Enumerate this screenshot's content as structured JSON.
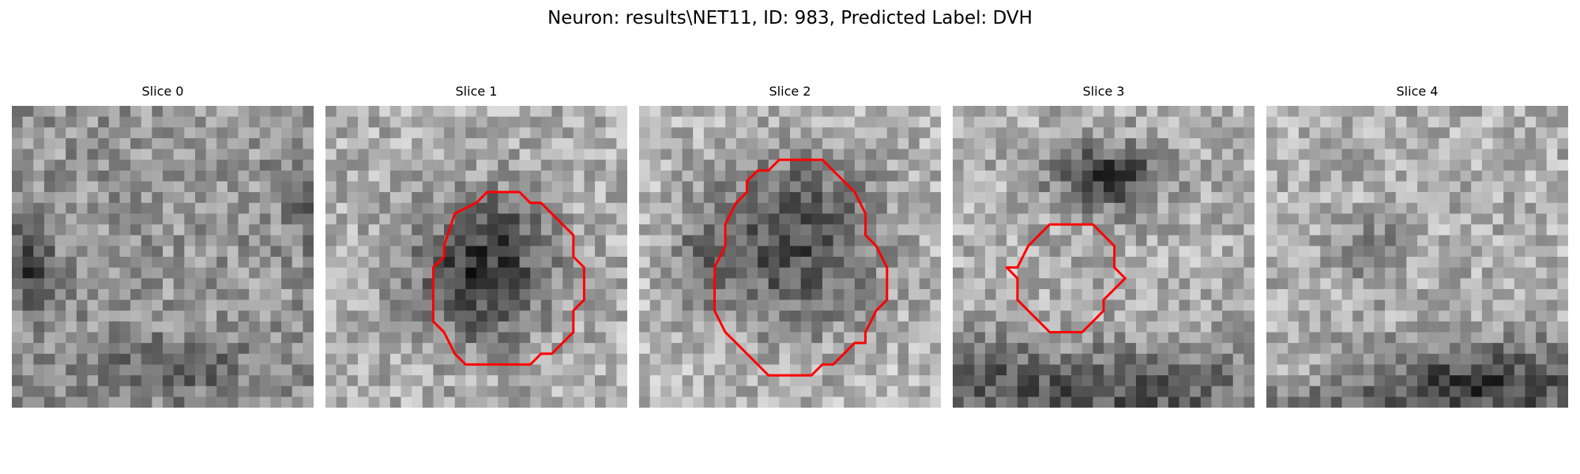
{
  "figure": {
    "title": "Neuron: results\\NET11, ID: 983, Predicted Label: DVH"
  },
  "colors": {
    "contour": "#ff0000",
    "background": "#ffffff"
  },
  "slices": [
    {
      "title": "Slice 0",
      "has_contour": false
    },
    {
      "title": "Slice 1",
      "has_contour": true
    },
    {
      "title": "Slice 2",
      "has_contour": true
    },
    {
      "title": "Slice 3",
      "has_contour": true
    },
    {
      "title": "Slice 4",
      "has_contour": false
    }
  ]
}
